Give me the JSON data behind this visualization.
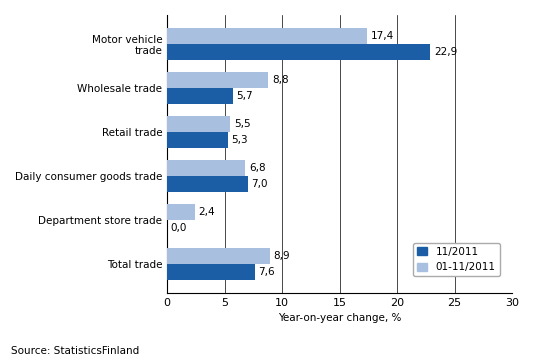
{
  "categories": [
    "Motor vehicle\ntrade",
    "Wholesale trade",
    "Retail trade",
    "Daily consumer goods trade",
    "Department store trade",
    "Total trade"
  ],
  "series1_label": "11/2011",
  "series2_label": "01-11/2011",
  "series1_values": [
    22.9,
    5.7,
    5.3,
    7.0,
    0.0,
    7.6
  ],
  "series2_values": [
    17.4,
    8.8,
    5.5,
    6.8,
    2.4,
    8.9
  ],
  "series1_color": "#1B5EA6",
  "series2_color": "#A8BFE0",
  "xlabel": "Year-on-year change, %",
  "source": "Source: StatisticsFinland",
  "xlim": [
    0,
    30
  ],
  "xticks": [
    0,
    5,
    10,
    15,
    20,
    25,
    30
  ],
  "bar_height": 0.36,
  "label_fontsize": 7.5,
  "tick_fontsize": 8,
  "value_fontsize": 7.5,
  "legend_fontsize": 7.5,
  "source_fontsize": 7.5,
  "value_labels_s1": [
    "22,9",
    "5,7",
    "5,3",
    "7,0",
    "0,0",
    "7,6"
  ],
  "value_labels_s2": [
    "17,4",
    "8,8",
    "5,5",
    "6,8",
    "2,4",
    "8,9"
  ]
}
